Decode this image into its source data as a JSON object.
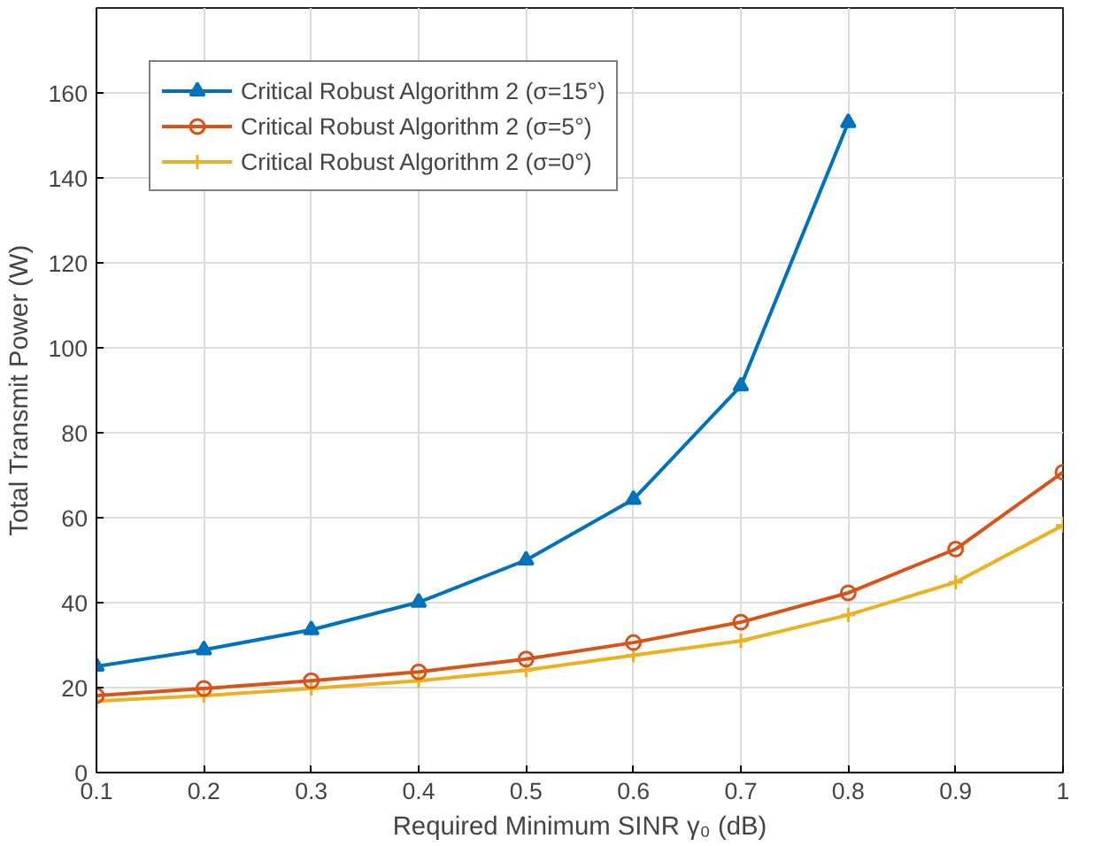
{
  "chart_data": {
    "type": "line",
    "xlabel": "Required Minimum SINR γ₀ (dB)",
    "ylabel": "Total Transmit Power (W)",
    "x": [
      0.1,
      0.2,
      0.3,
      0.4,
      0.5,
      0.6,
      0.7,
      0.8,
      0.9,
      1.0
    ],
    "xlim": [
      0.1,
      1.0
    ],
    "xticks": [
      0.1,
      0.2,
      0.3,
      0.4,
      0.5,
      0.6,
      0.7,
      0.8,
      0.9,
      1
    ],
    "ylim": [
      0,
      180
    ],
    "yticks": [
      0,
      20,
      40,
      60,
      80,
      100,
      120,
      140,
      160
    ],
    "grid": true,
    "legend": "top left",
    "line_style": "solid",
    "series": [
      {
        "name": "Critical Robust Algorithm 2 (σ=15°)",
        "color": "#0072bd",
        "marker": "triangle",
        "values": [
          25.0,
          28.9,
          33.6,
          40.1,
          50.0,
          64.3,
          91.0,
          153.0,
          null,
          null
        ]
      },
      {
        "name": "Critical Robust Algorithm 2 (σ=5°)",
        "color": "#d95319",
        "marker": "circle",
        "values": [
          18.1,
          19.8,
          21.6,
          23.7,
          26.7,
          30.6,
          35.4,
          42.3,
          52.6,
          70.7
        ]
      },
      {
        "name": "Critical Robust Algorithm 2 (σ=0°)",
        "color": "#edb120",
        "marker": "cross",
        "values": [
          16.8,
          18.1,
          19.8,
          21.6,
          24.1,
          27.6,
          31.0,
          37.1,
          44.8,
          58.2
        ]
      }
    ]
  }
}
